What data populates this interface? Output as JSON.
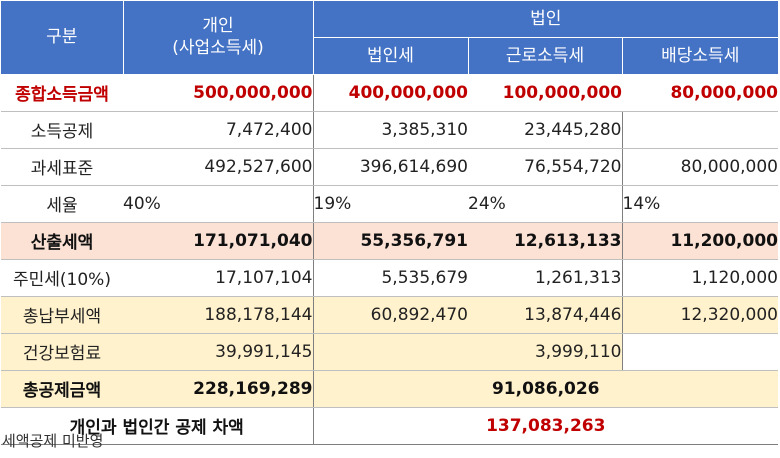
{
  "header": {
    "category": "구분",
    "individual_line1": "개인",
    "individual_line2": "(사업소득세)",
    "corporate": "법인",
    "corp_tax": "법인세",
    "earned_income_tax": "근로소득세",
    "dividend_income_tax": "배당소득세"
  },
  "rows": [
    {
      "label": "종합소득금액",
      "individual": "500,000,000",
      "corp_tax": "400,000,000",
      "earned": "100,000,000",
      "dividend": "80,000,000"
    },
    {
      "label": "소득공제",
      "individual": "7,472,400",
      "corp_tax": "3,385,310",
      "earned": "23,445,280",
      "dividend": ""
    },
    {
      "label": "과세표준",
      "individual": "492,527,600",
      "corp_tax": "396,614,690",
      "earned": "76,554,720",
      "dividend": "80,000,000"
    },
    {
      "label": "세율",
      "individual": "40%",
      "corp_tax": "19%",
      "earned": "24%",
      "dividend": "14%"
    },
    {
      "label": "산출세액",
      "individual": "171,071,040",
      "corp_tax": "55,356,791",
      "earned": "12,613,133",
      "dividend": "11,200,000"
    },
    {
      "label": "주민세(10%)",
      "individual": "17,107,104",
      "corp_tax": "5,535,679",
      "earned": "1,261,313",
      "dividend": "1,120,000"
    },
    {
      "label": "총납부세액",
      "individual": "188,178,144",
      "corp_tax": "60,892,470",
      "earned": "13,874,446",
      "dividend": "12,320,000"
    },
    {
      "label": "건강보험료",
      "individual": "39,991,145",
      "corp_tax": "",
      "earned": "3,999,110",
      "dividend": ""
    }
  ],
  "total_deduction": {
    "label": "총공제금액",
    "individual": "228,169,289",
    "corporate": "91,086,026"
  },
  "difference": {
    "label": "개인과 법인간 공제 차액",
    "value": "137,083,263"
  },
  "note": "세액공제 미반영",
  "colors": {
    "header": "#4472c4",
    "highlight_red": "#c00000",
    "calc_row": "#fbe2d5",
    "gold_row": "#fff2cc"
  }
}
